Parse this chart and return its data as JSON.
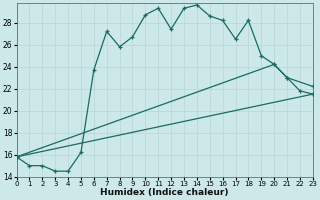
{
  "xlabel": "Humidex (Indice chaleur)",
  "xlim": [
    0,
    23
  ],
  "ylim": [
    14,
    29.8
  ],
  "xticks": [
    0,
    1,
    2,
    3,
    4,
    5,
    6,
    7,
    8,
    9,
    10,
    11,
    12,
    13,
    14,
    15,
    16,
    17,
    18,
    19,
    20,
    21,
    22,
    23
  ],
  "yticks": [
    14,
    16,
    18,
    20,
    22,
    24,
    26,
    28
  ],
  "background_color": "#cce8e8",
  "grid_color": "#b8d4d4",
  "line_color": "#1a6b60",
  "line1_x": [
    0,
    1,
    2,
    3,
    4,
    5,
    6,
    7,
    8,
    9,
    10,
    11,
    12,
    13,
    14,
    15,
    16,
    17,
    18,
    19,
    20,
    21,
    22,
    23
  ],
  "line1_y": [
    15.8,
    15.0,
    15.0,
    14.5,
    14.5,
    16.2,
    23.7,
    27.2,
    25.8,
    26.7,
    28.7,
    29.3,
    27.4,
    29.3,
    29.6,
    28.6,
    28.2,
    26.5,
    28.2,
    25.0,
    24.2,
    23.0,
    21.8,
    21.5
  ],
  "line2_x": [
    0,
    23
  ],
  "line2_y": [
    15.8,
    21.5
  ],
  "line3_x": [
    0,
    20,
    21,
    23
  ],
  "line3_y": [
    15.8,
    24.2,
    23.0,
    22.2
  ]
}
